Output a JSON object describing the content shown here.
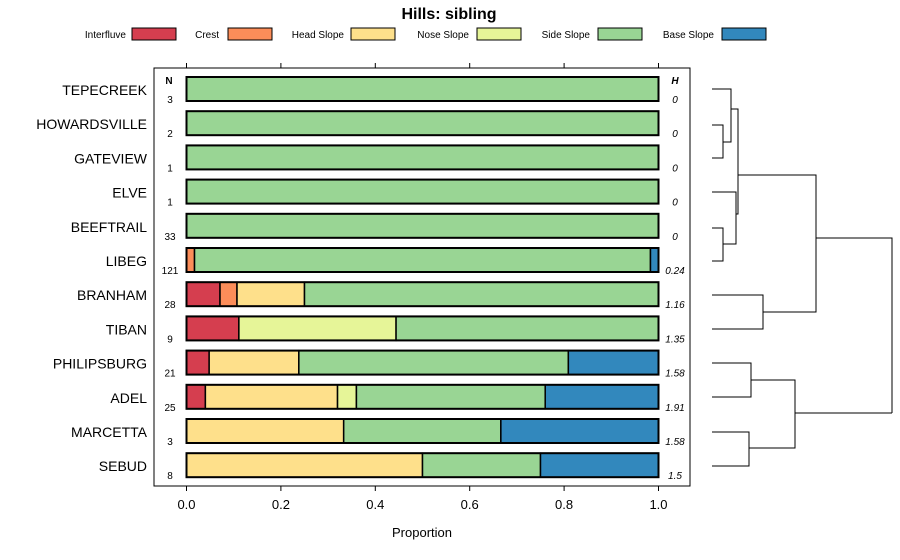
{
  "chart_data": {
    "type": "bar",
    "subtype": "stacked-horizontal-proportion",
    "title": "Hills: sibling",
    "xlabel": "Proportion",
    "xlim": [
      0,
      1
    ],
    "xticks": [
      "0.0",
      "0.2",
      "0.4",
      "0.6",
      "0.8",
      "1.0"
    ],
    "xtick_values": [
      0,
      0.2,
      0.4,
      0.6,
      0.8,
      1.0
    ],
    "n_header": "N",
    "h_header": "H",
    "legend_placement": "top",
    "legend": [
      {
        "name": "Interfluve",
        "color": "#D53E4F"
      },
      {
        "name": "Crest",
        "color": "#FC8D59"
      },
      {
        "name": "Head Slope",
        "color": "#FEE08B"
      },
      {
        "name": "Nose Slope",
        "color": "#E6F598"
      },
      {
        "name": "Side Slope",
        "color": "#99D594"
      },
      {
        "name": "Base Slope",
        "color": "#3288BD"
      }
    ],
    "rows": [
      {
        "name": "TEPECREEK",
        "n": "3",
        "h": "0",
        "values": [
          0,
          0,
          0,
          0,
          1.0,
          0
        ]
      },
      {
        "name": "HOWARDSVILLE",
        "n": "2",
        "h": "0",
        "values": [
          0,
          0,
          0,
          0,
          1.0,
          0
        ]
      },
      {
        "name": "GATEVIEW",
        "n": "1",
        "h": "0",
        "values": [
          0,
          0,
          0,
          0,
          1.0,
          0
        ]
      },
      {
        "name": "ELVE",
        "n": "1",
        "h": "0",
        "values": [
          0,
          0,
          0,
          0,
          1.0,
          0
        ]
      },
      {
        "name": "BEEFTRAIL",
        "n": "33",
        "h": "0",
        "values": [
          0,
          0,
          0,
          0,
          1.0,
          0
        ]
      },
      {
        "name": "LIBEG",
        "n": "121",
        "h": "0.24",
        "values": [
          0,
          0.017,
          0,
          0,
          0.966,
          0.017
        ]
      },
      {
        "name": "BRANHAM",
        "n": "28",
        "h": "1.16",
        "values": [
          0.071,
          0.036,
          0.143,
          0,
          0.75,
          0
        ]
      },
      {
        "name": "TIBAN",
        "n": "9",
        "h": "1.35",
        "values": [
          0.111,
          0,
          0,
          0.333,
          0.556,
          0
        ]
      },
      {
        "name": "PHILIPSBURG",
        "n": "21",
        "h": "1.58",
        "values": [
          0.048,
          0,
          0.19,
          0,
          0.571,
          0.191
        ]
      },
      {
        "name": "ADEL",
        "n": "25",
        "h": "1.91",
        "values": [
          0.04,
          0,
          0.28,
          0.04,
          0.4,
          0.24
        ]
      },
      {
        "name": "MARCETTA",
        "n": "3",
        "h": "1.58",
        "values": [
          0,
          0,
          0.333,
          0,
          0.333,
          0.334
        ]
      },
      {
        "name": "SEBUD",
        "n": "8",
        "h": "1.5",
        "values": [
          0,
          0,
          0.5,
          0,
          0.25,
          0.25
        ]
      }
    ],
    "dendrogram": {
      "description": "hierarchical clustering of rows (structure only)",
      "groups": [
        [
          "TEPECREEK",
          "HOWARDSVILLE",
          "GATEVIEW",
          "ELVE",
          "BEEFTRAIL",
          "LIBEG"
        ],
        [
          "BRANHAM",
          "TIBAN"
        ],
        [
          "PHILIPSBURG",
          "ADEL",
          "MARCETTA",
          "SEBUD"
        ]
      ]
    }
  }
}
